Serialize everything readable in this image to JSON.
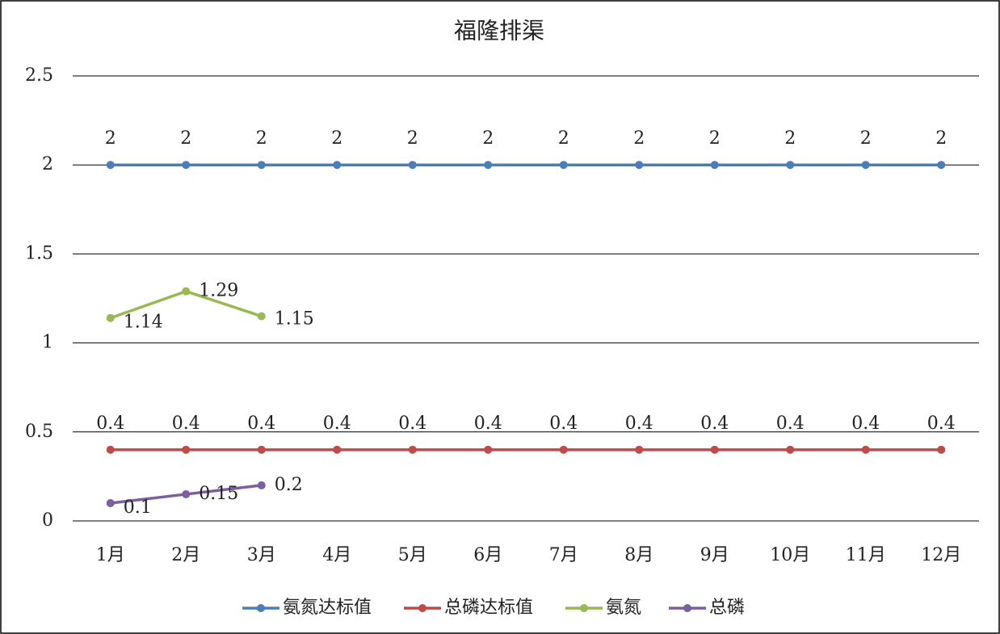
{
  "chart_data": {
    "type": "line",
    "title": "福隆排渠",
    "categories": [
      "1月",
      "2月",
      "3月",
      "4月",
      "5月",
      "6月",
      "7月",
      "8月",
      "9月",
      "10月",
      "11月",
      "12月"
    ],
    "series": [
      {
        "name": "氨氮达标值",
        "color": "#4a7ebb",
        "values": [
          2,
          2,
          2,
          2,
          2,
          2,
          2,
          2,
          2,
          2,
          2,
          2
        ]
      },
      {
        "name": "总磷达标值",
        "color": "#be4b48",
        "values": [
          0.4,
          0.4,
          0.4,
          0.4,
          0.4,
          0.4,
          0.4,
          0.4,
          0.4,
          0.4,
          0.4,
          0.4
        ]
      },
      {
        "name": "氨氮",
        "color": "#98b954",
        "values": [
          1.14,
          1.29,
          1.15,
          null,
          null,
          null,
          null,
          null,
          null,
          null,
          null,
          null
        ]
      },
      {
        "name": "总磷",
        "color": "#7d5fa0",
        "values": [
          0.1,
          0.15,
          0.2,
          null,
          null,
          null,
          null,
          null,
          null,
          null,
          null,
          null
        ]
      }
    ],
    "ylim": [
      0,
      2.5
    ],
    "yticks": [
      0,
      0.5,
      1,
      1.5,
      2,
      2.5
    ],
    "grid": true,
    "legend": "bottom"
  }
}
